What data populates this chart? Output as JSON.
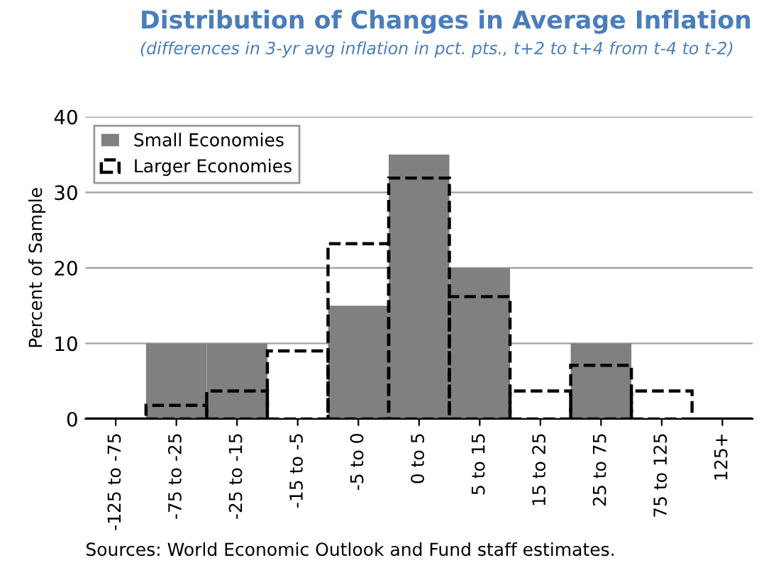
{
  "chart_data": {
    "type": "bar",
    "title": "Distribution of Changes in Average Inflation",
    "subtitle": "(differences in 3-yr avg inflation in pct. pts., t+2 to t+4 from t-4 to t-2)",
    "ylabel": "Percent of Sample",
    "categories": [
      "-125 to -75",
      "-75 to -25",
      "-25 to -15",
      "-15 to -5",
      "-5 to 0",
      "0 to 5",
      "5 to 15",
      "15 to 25",
      "25 to 75",
      "75 to 125",
      "125+"
    ],
    "series": [
      {
        "name": "Small Economies",
        "color": "#808080",
        "values": [
          0,
          10,
          10,
          0,
          15,
          35,
          20,
          0,
          10,
          0,
          0
        ]
      },
      {
        "name": "Larger Economies",
        "color": "#000000",
        "line_style": "dashed",
        "values": [
          0,
          1.8,
          3.7,
          9.0,
          23.2,
          31.9,
          16.2,
          3.7,
          7.1,
          3.7,
          0
        ]
      }
    ],
    "ylim": [
      0,
      40
    ],
    "yticks": [
      0,
      10,
      20,
      30,
      40
    ],
    "grid": "y",
    "legend": "top left",
    "annotations": [
      "Sources: World Economic Outlook and Fund staff estimates."
    ]
  }
}
